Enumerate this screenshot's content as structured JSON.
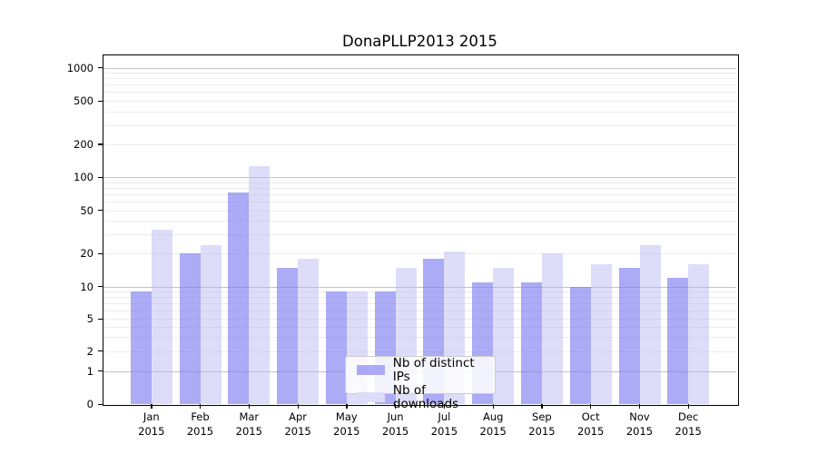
{
  "chart_data": {
    "type": "bar",
    "title": "DonaPLLP2013 2015",
    "categories": [
      "Jan",
      "Feb",
      "Mar",
      "Apr",
      "May",
      "Jun",
      "Jul",
      "Aug",
      "Sep",
      "Oct",
      "Nov",
      "Dec"
    ],
    "year_label": "2015",
    "series": [
      {
        "name": "Nb of distinct IPs",
        "color": "rgba(124,124,241,0.64)",
        "legend_color": "#abaaf6",
        "values": [
          9,
          20,
          72,
          15,
          9,
          9,
          18,
          11,
          11,
          10,
          15,
          12
        ]
      },
      {
        "name": "Nb of downloads",
        "color": "rgba(183,183,243,0.47)",
        "legend_color": "#dddcf9",
        "values": [
          33,
          24,
          126,
          18,
          9,
          15,
          21,
          15,
          20,
          16,
          24,
          16
        ]
      }
    ],
    "yticks": [
      0,
      1,
      2,
      5,
      10,
      20,
      50,
      100,
      200,
      500,
      1000
    ],
    "ylabel": "",
    "xlabel": "",
    "scale": "symlog",
    "ylim": [
      0,
      1300
    ],
    "grid": true,
    "legend_position": "lower-center",
    "colors": {
      "grid_major": "#c3c3c3",
      "grid_minor": "#ececec",
      "spine": "#000000",
      "background": "#ffffff"
    }
  }
}
